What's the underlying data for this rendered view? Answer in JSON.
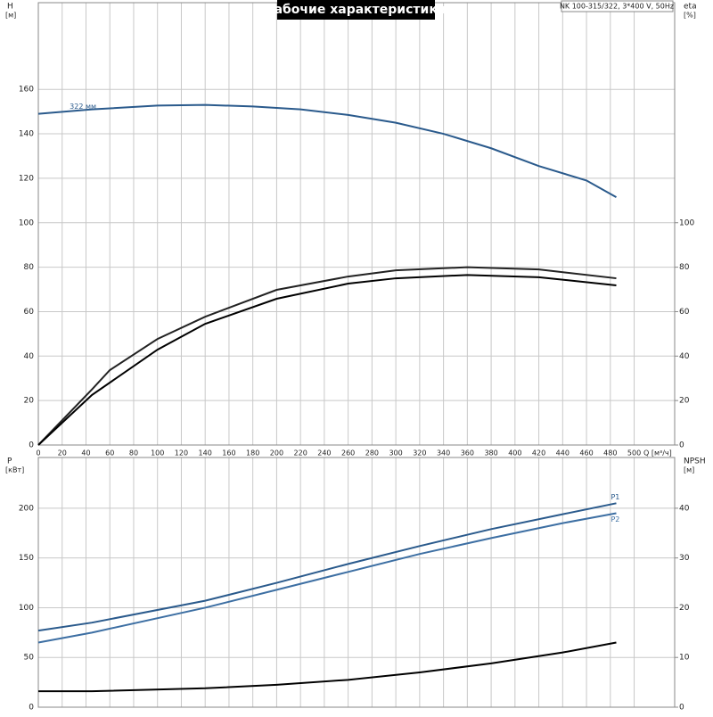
{
  "title": "Рабочие характеристики",
  "model": "NK 100-315/322, 3*400 V, 50Hz",
  "chart_data": [
    {
      "type": "line",
      "xlabel": "Q [м³/ч]",
      "ylabel": "H",
      "yunit": "[м]",
      "y2label": "eta",
      "y2unit": "[%]",
      "xlim": [
        0,
        534
      ],
      "xticks": [
        0,
        20,
        40,
        60,
        80,
        100,
        120,
        140,
        160,
        180,
        200,
        220,
        240,
        260,
        280,
        300,
        320,
        340,
        360,
        380,
        400,
        420,
        440,
        460,
        480,
        500
      ],
      "ylim": [
        0,
        199
      ],
      "yticks": [
        0,
        20,
        40,
        60,
        80,
        100,
        120,
        140,
        160
      ],
      "y2lim": [
        0,
        199
      ],
      "y2ticks": [
        0,
        20,
        40,
        60,
        80,
        100
      ],
      "grid": true,
      "series": [
        {
          "name": "322 мм",
          "color": "#2a5a8c",
          "x": [
            0,
            45,
            100,
            140,
            180,
            220,
            260,
            300,
            340,
            380,
            420,
            460,
            485
          ],
          "values": [
            149,
            151,
            152.7,
            153,
            152.3,
            151,
            148.5,
            145,
            140,
            133.5,
            125.5,
            119,
            111.5
          ]
        },
        {
          "color": "#222222",
          "axis": "y2",
          "x": [
            0,
            45,
            60,
            100,
            140,
            200,
            260,
            300,
            360,
            420,
            485
          ],
          "values": [
            0,
            25,
            33.7,
            47.7,
            57.7,
            69.8,
            75.8,
            78.6,
            80,
            79,
            75
          ]
        },
        {
          "color": "#000000",
          "axis": "y2",
          "x": [
            0,
            45,
            100,
            140,
            200,
            260,
            300,
            360,
            420,
            485
          ],
          "values": [
            0,
            22.5,
            42.9,
            54.5,
            65.8,
            72.6,
            75,
            76.5,
            75.5,
            71.8
          ]
        }
      ]
    },
    {
      "type": "line",
      "ylabel": "P",
      "yunit": "[кВт]",
      "y2label": "NPSH",
      "y2unit": "[м]",
      "xlim": [
        0,
        534
      ],
      "xticks": [
        0,
        20,
        40,
        60,
        80,
        100,
        120,
        140,
        160,
        180,
        200,
        220,
        240,
        260,
        280,
        300,
        320,
        340,
        360,
        380,
        400,
        420,
        440,
        460,
        480,
        500
      ],
      "ylim": [
        0,
        251
      ],
      "yticks": [
        0,
        50,
        100,
        150,
        200
      ],
      "y2lim": [
        0,
        50.2
      ],
      "y2ticks": [
        0,
        10,
        20,
        30,
        40
      ],
      "grid": true,
      "series": [
        {
          "name": "P1",
          "color": "#2a5a8c",
          "x": [
            0,
            45,
            140,
            200,
            260,
            320,
            380,
            440,
            485
          ],
          "values": [
            77,
            85,
            107,
            125,
            144,
            162,
            179,
            194,
            205
          ]
        },
        {
          "name": "P2",
          "color": "#3d6fa3",
          "x": [
            0,
            45,
            140,
            200,
            260,
            320,
            380,
            440,
            485
          ],
          "values": [
            65,
            75,
            100,
            118,
            136,
            154,
            170,
            185,
            195
          ]
        },
        {
          "color": "#000000",
          "axis": "y2",
          "x": [
            0,
            45,
            140,
            200,
            260,
            320,
            380,
            440,
            485
          ],
          "values": [
            3.2,
            3.2,
            3.8,
            4.5,
            5.5,
            7,
            8.8,
            11,
            13
          ]
        }
      ]
    }
  ]
}
